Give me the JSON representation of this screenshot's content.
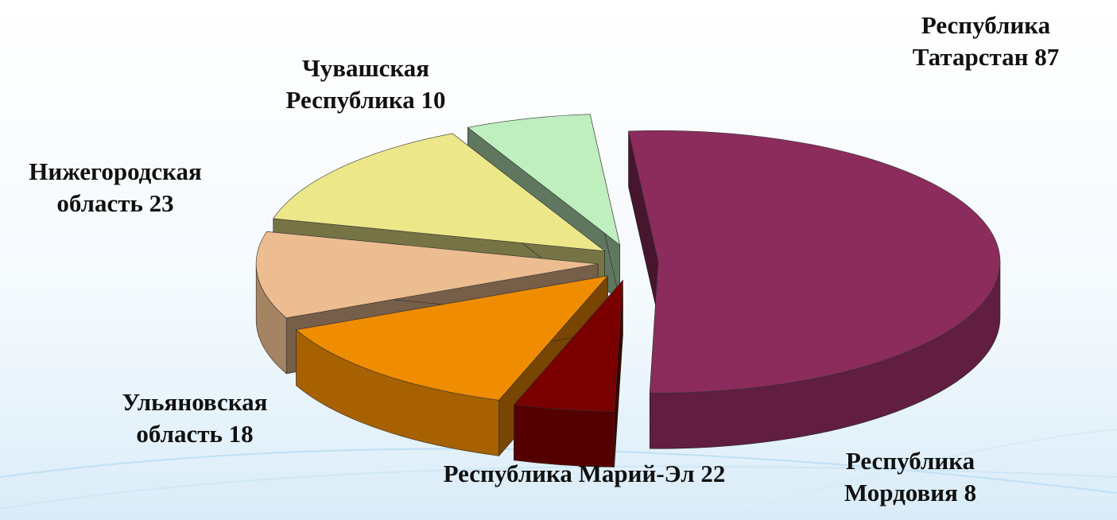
{
  "chart_data": {
    "type": "pie3d",
    "categories": [
      "Республика Татарстан",
      "Республика Мордовия",
      "Республика Марий-Эл",
      "Ульяновская область",
      "Нижегородская область",
      "Чувашская Республика"
    ],
    "values": [
      87,
      8,
      22,
      18,
      23,
      10
    ],
    "colors": [
      "#8b2c5c",
      "#7a0000",
      "#f08c00",
      "#ecbd90",
      "#ece88a",
      "#bfeebf"
    ]
  }
}
